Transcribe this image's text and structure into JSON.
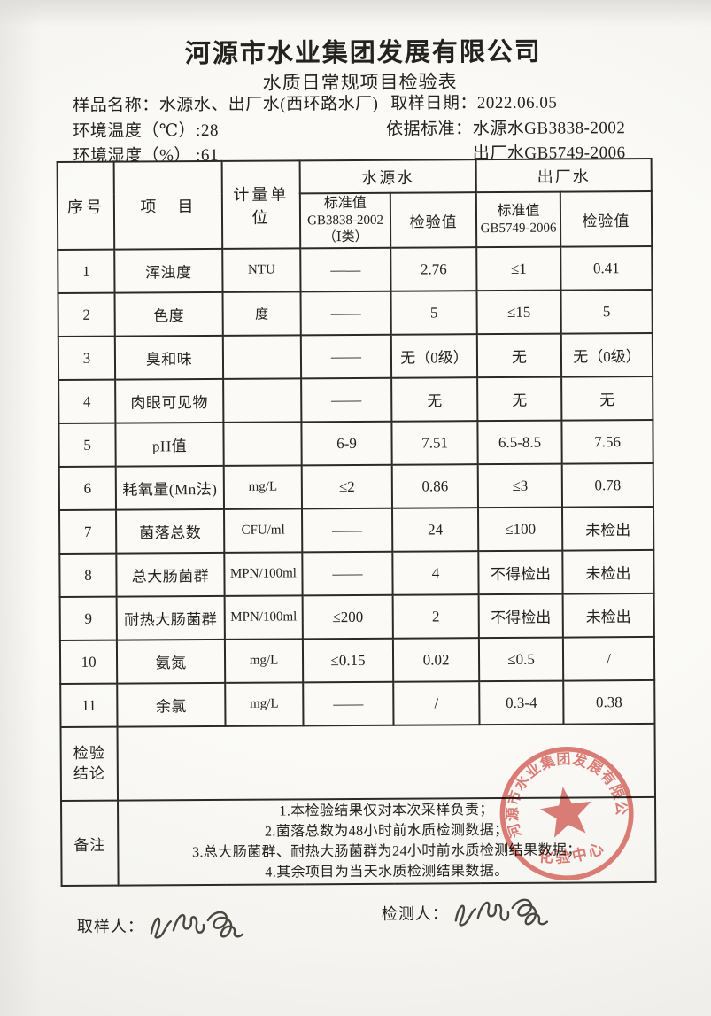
{
  "theme": {
    "stamp_color": "#d4685f",
    "ink_color": "#24221f"
  },
  "header": {
    "company": "河源市水业集团发展有限公司",
    "title": "水质日常规项目检验表",
    "sample_label": "样品名称：",
    "sample_value": "水源水、出厂水(西环路水厂)",
    "date_label": "取样日期：",
    "date_value": "2022.06.05",
    "env_temp_line": "环境温度（℃）:28",
    "standard_label": "依据标准：",
    "standard_source_water": "水源水GB3838-2002",
    "env_humidity_line": "环境湿度（%） :61",
    "standard_factory_water": "出厂水GB5749-2006"
  },
  "table": {
    "headers": {
      "no": "序号",
      "item": "项　目",
      "unit": "计量单位",
      "source_group": "水源水",
      "factory_group": "出厂水",
      "std_label": "标准值",
      "source_std_code": "GB3838-2002",
      "source_std_class": "（Ⅰ类）",
      "factory_std_code": "GB5749-2006",
      "value_label": "检验值"
    },
    "rows": [
      {
        "no": "1",
        "item": "浑浊度",
        "unit": "NTU",
        "src_std": "——",
        "src_val": "2.76",
        "fac_std": "≤1",
        "fac_val": "0.41"
      },
      {
        "no": "2",
        "item": "色度",
        "unit": "度",
        "src_std": "——",
        "src_val": "5",
        "fac_std": "≤15",
        "fac_val": "5"
      },
      {
        "no": "3",
        "item": "臭和味",
        "unit": "",
        "src_std": "——",
        "src_val": "无（0级）",
        "fac_std": "无",
        "fac_val": "无（0级）"
      },
      {
        "no": "4",
        "item": "肉眼可见物",
        "unit": "",
        "src_std": "——",
        "src_val": "无",
        "fac_std": "无",
        "fac_val": "无"
      },
      {
        "no": "5",
        "item": "pH值",
        "unit": "",
        "src_std": "6-9",
        "src_val": "7.51",
        "fac_std": "6.5-8.5",
        "fac_val": "7.56"
      },
      {
        "no": "6",
        "item": "耗氧量(Mn法)",
        "unit": "mg/L",
        "src_std": "≤2",
        "src_val": "0.86",
        "fac_std": "≤3",
        "fac_val": "0.78"
      },
      {
        "no": "7",
        "item": "菌落总数",
        "unit": "CFU/ml",
        "src_std": "——",
        "src_val": "24",
        "fac_std": "≤100",
        "fac_val": "未检出"
      },
      {
        "no": "8",
        "item": "总大肠菌群",
        "unit": "MPN/100ml",
        "src_std": "——",
        "src_val": "4",
        "fac_std": "不得检出",
        "fac_val": "未检出"
      },
      {
        "no": "9",
        "item": "耐热大肠菌群",
        "unit": "MPN/100ml",
        "src_std": "≤200",
        "src_val": "2",
        "fac_std": "不得检出",
        "fac_val": "未检出"
      },
      {
        "no": "10",
        "item": "氨氮",
        "unit": "mg/L",
        "src_std": "≤0.15",
        "src_val": "0.02",
        "fac_std": "≤0.5",
        "fac_val": "/"
      },
      {
        "no": "11",
        "item": "余氯",
        "unit": "mg/L",
        "src_std": "——",
        "src_val": "/",
        "fac_std": "0.3-4",
        "fac_val": "0.38"
      }
    ]
  },
  "conclusion": {
    "label_line1": "检验",
    "label_line2": "结论",
    "value": ""
  },
  "remarks": {
    "label": "备注",
    "notes": [
      "1.本检验结果仅对本次采样负责；",
      "2.菌落总数为48小时前水质检测数据；",
      "3.总大肠菌群、耐热大肠菌群为24小时前水质检测结果数据；",
      "4.其余项目为当天水质检测结果数据。"
    ]
  },
  "footer": {
    "sampler_label": "取样人：",
    "inspector_label": "检测人："
  },
  "stamp": {
    "ring_text": "河源市水业集团发展有限公司",
    "center_text": "化验中心"
  }
}
